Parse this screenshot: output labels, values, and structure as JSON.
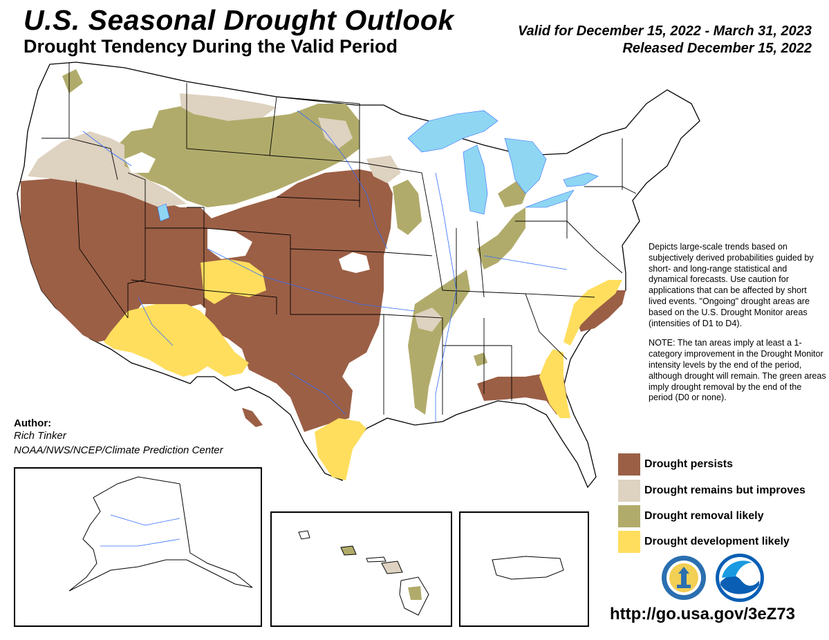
{
  "header": {
    "title": "U.S. Seasonal Drought Outlook",
    "subtitle": "Drought Tendency During the Valid Period",
    "valid": "Valid for December 15, 2022 - March 31, 2023",
    "released": "Released December 15, 2022"
  },
  "description": {
    "paragraph1": "Depicts large-scale trends based on subjectively derived probabilities guided by short- and long-range statistical and dynamical forecasts. Use caution for applications that can be affected by short lived events. \"Ongoing\" drought areas are based on the U.S. Drought Monitor areas (intensities of D1 to D4).",
    "paragraph2": "NOTE: The tan areas imply at least a 1-category improvement in the Drought Monitor intensity levels by the end of the period, although drought will remain. The green areas imply drought removal by the end of the period (D0 or none)."
  },
  "legend": [
    {
      "label": "Drought persists",
      "color": "#9b5f45"
    },
    {
      "label": "Drought remains but improves",
      "color": "#ded2c0"
    },
    {
      "label": "Drought removal likely",
      "color": "#b1ab6b"
    },
    {
      "label": "Drought development likely",
      "color": "#ffde5e"
    }
  ],
  "author": {
    "heading": "Author:",
    "name": "Rich Tinker",
    "org": "NOAA/NWS/NCEP/Climate Prediction Center"
  },
  "url": "http://go.usa.gov/3eZ73",
  "colors": {
    "water": "#8fd6f3",
    "river": "#2f6bff",
    "state_border": "#000000"
  },
  "logos": [
    "department-of-commerce-seal-icon",
    "noaa-logo-icon"
  ]
}
